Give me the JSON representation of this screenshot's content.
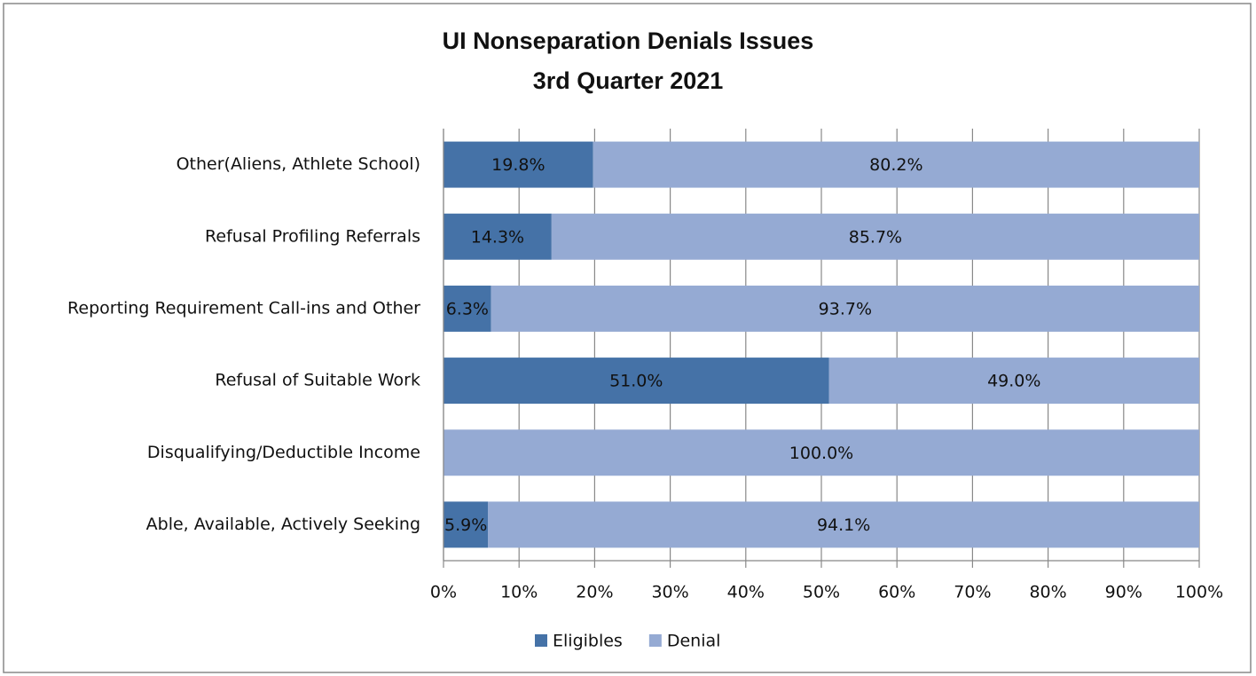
{
  "chart_data": {
    "type": "stacked_barh",
    "title": "UI Nonseparation Denials Issues",
    "subtitle": "3rd Quarter 2021",
    "categories": [
      "Other(Aliens, Athlete School)",
      "Refusal Profiling Referrals",
      "Reporting Requirement Call-ins and Other",
      "Refusal of Suitable Work",
      "Disqualifying/Deductible Income",
      "Able, Available, Actively Seeking"
    ],
    "series": [
      {
        "name": "Eligibles",
        "color": "#4572a7",
        "values": [
          19.8,
          14.3,
          6.3,
          51.0,
          0,
          5.9
        ],
        "value_labels": [
          "19.8%",
          "14.3%",
          "6.3%",
          "51.0%",
          null,
          "5.9%"
        ]
      },
      {
        "name": "Denial",
        "color": "#95aad3",
        "values": [
          80.2,
          85.7,
          93.7,
          49.0,
          100.0,
          94.1
        ],
        "value_labels": [
          "80.2%",
          "85.7%",
          "93.7%",
          "49.0%",
          "100.0%",
          "94.1%"
        ]
      }
    ],
    "xlim": [
      0,
      100
    ],
    "xticks": [
      {
        "value": 0,
        "label": "0%"
      },
      {
        "value": 10,
        "label": "10%"
      },
      {
        "value": 20,
        "label": "20%"
      },
      {
        "value": 30,
        "label": "30%"
      },
      {
        "value": 40,
        "label": "40%"
      },
      {
        "value": 50,
        "label": "50%"
      },
      {
        "value": 60,
        "label": "60%"
      },
      {
        "value": 70,
        "label": "70%"
      },
      {
        "value": 80,
        "label": "80%"
      },
      {
        "value": 90,
        "label": "90%"
      },
      {
        "value": 100,
        "label": "100%"
      }
    ],
    "grid": true,
    "legend": "bottom"
  }
}
